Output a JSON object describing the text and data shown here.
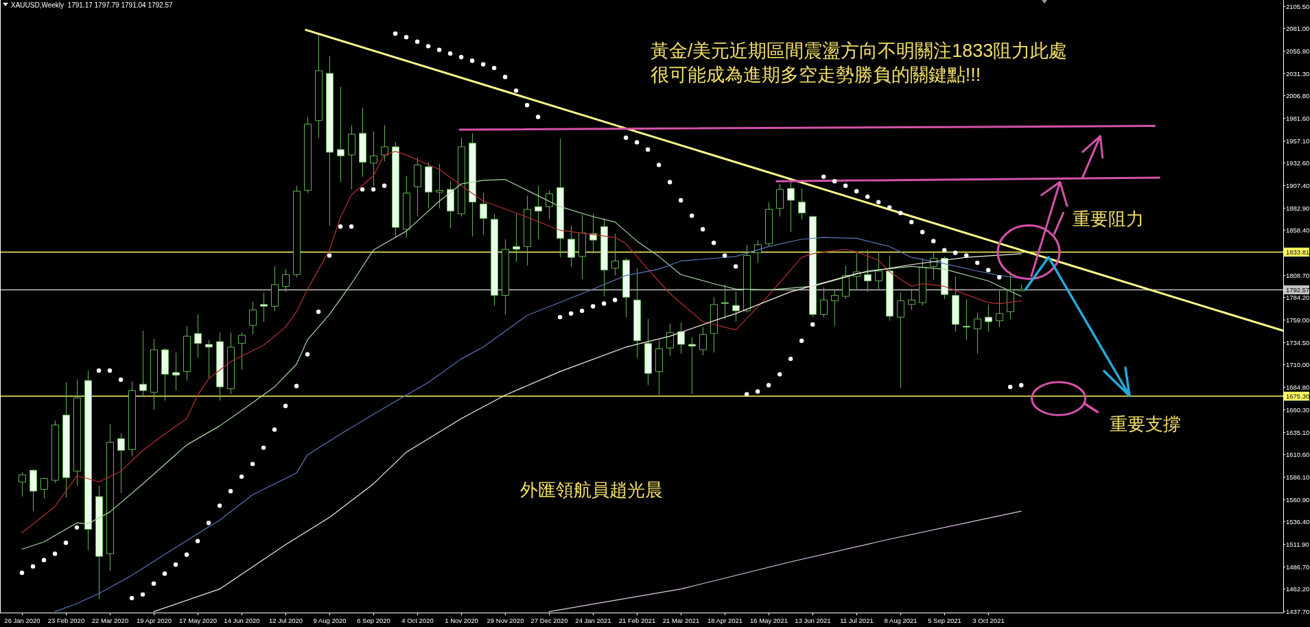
{
  "chart_data": {
    "type": "candlestick",
    "title": "XAUUSD,Weekly  1791.17 1797.79 1791.04 1792.57",
    "x": [
      "2020-01-26",
      "2020-02-02",
      "2020-02-09",
      "2020-02-16",
      "2020-02-23",
      "2020-03-01",
      "2020-03-08",
      "2020-03-15",
      "2020-03-22",
      "2020-03-29",
      "2020-04-05",
      "2020-04-12",
      "2020-04-19",
      "2020-04-26",
      "2020-05-03",
      "2020-05-10",
      "2020-05-17",
      "2020-05-24",
      "2020-05-31",
      "2020-06-07",
      "2020-06-14",
      "2020-06-21",
      "2020-06-28",
      "2020-07-05",
      "2020-07-12",
      "2020-07-19",
      "2020-07-26",
      "2020-08-02",
      "2020-08-09",
      "2020-08-16",
      "2020-08-23",
      "2020-08-30",
      "2020-09-06",
      "2020-09-13",
      "2020-09-20",
      "2020-09-27",
      "2020-10-04",
      "2020-10-11",
      "2020-10-18",
      "2020-10-25",
      "2020-11-01",
      "2020-11-08",
      "2020-11-15",
      "2020-11-22",
      "2020-11-29",
      "2020-12-06",
      "2020-12-13",
      "2020-12-20",
      "2020-12-27",
      "2021-01-03",
      "2021-01-10",
      "2021-01-17",
      "2021-01-24",
      "2021-01-31",
      "2021-02-07",
      "2021-02-14",
      "2021-02-21",
      "2021-02-28",
      "2021-03-07",
      "2021-03-14",
      "2021-03-21",
      "2021-03-28",
      "2021-04-04",
      "2021-04-11",
      "2021-04-18",
      "2021-04-25",
      "2021-05-02",
      "2021-05-09",
      "2021-05-16",
      "2021-05-23",
      "2021-05-30",
      "2021-06-06",
      "2021-06-13",
      "2021-06-20",
      "2021-06-27",
      "2021-07-04",
      "2021-07-11",
      "2021-07-18",
      "2021-07-25",
      "2021-08-01",
      "2021-08-08",
      "2021-08-15",
      "2021-08-22",
      "2021-08-29",
      "2021-09-05",
      "2021-09-12",
      "2021-09-19",
      "2021-09-26",
      "2021-10-03",
      "2021-10-10",
      "2021-10-17",
      "2021-10-24"
    ],
    "ohlc": [
      [
        1580,
        1591,
        1564,
        1588
      ],
      [
        1593,
        1594,
        1548,
        1570
      ],
      [
        1572,
        1585,
        1562,
        1584
      ],
      [
        1582,
        1648,
        1579,
        1643
      ],
      [
        1654,
        1690,
        1563,
        1585
      ],
      [
        1592,
        1693,
        1576,
        1673
      ],
      [
        1692,
        1703,
        1505,
        1528
      ],
      [
        1564,
        1576,
        1451,
        1498
      ],
      [
        1501,
        1644,
        1482,
        1624
      ],
      [
        1628,
        1634,
        1568,
        1615
      ],
      [
        1616,
        1691,
        1609,
        1681
      ],
      [
        1688,
        1747,
        1674,
        1681
      ],
      [
        1679,
        1738,
        1660,
        1726
      ],
      [
        1726,
        1728,
        1670,
        1699
      ],
      [
        1701,
        1723,
        1681,
        1698
      ],
      [
        1702,
        1752,
        1692,
        1741
      ],
      [
        1744,
        1765,
        1717,
        1733
      ],
      [
        1732,
        1737,
        1695,
        1729
      ],
      [
        1735,
        1745,
        1670,
        1685
      ],
      [
        1683,
        1745,
        1677,
        1729
      ],
      [
        1733,
        1745,
        1704,
        1742
      ],
      [
        1753,
        1779,
        1743,
        1770
      ],
      [
        1776,
        1789,
        1757,
        1774
      ],
      [
        1774,
        1818,
        1769,
        1798
      ],
      [
        1796,
        1815,
        1790,
        1809
      ],
      [
        1809,
        1907,
        1806,
        1901
      ],
      [
        1902,
        1983,
        1899,
        1975
      ],
      [
        1979,
        2076,
        1960,
        2034
      ],
      [
        2031,
        2050,
        1863,
        1944
      ],
      [
        1947,
        2016,
        1911,
        1940
      ],
      [
        1941,
        1974,
        1903,
        1964
      ],
      [
        1965,
        1993,
        1917,
        1933
      ],
      [
        1932,
        1967,
        1907,
        1940
      ],
      [
        1941,
        1974,
        1934,
        1950
      ],
      [
        1950,
        1955,
        1850,
        1861
      ],
      [
        1859,
        1918,
        1850,
        1899
      ],
      [
        1906,
        1938,
        1873,
        1930
      ],
      [
        1928,
        1933,
        1882,
        1900
      ],
      [
        1900,
        1931,
        1882,
        1902
      ],
      [
        1903,
        1912,
        1860,
        1879
      ],
      [
        1876,
        1960,
        1873,
        1950
      ],
      [
        1954,
        1965,
        1851,
        1889
      ],
      [
        1887,
        1899,
        1853,
        1871
      ],
      [
        1870,
        1876,
        1775,
        1786
      ],
      [
        1786,
        1848,
        1765,
        1837
      ],
      [
        1840,
        1876,
        1823,
        1837
      ],
      [
        1840,
        1896,
        1819,
        1881
      ],
      [
        1884,
        1907,
        1848,
        1879
      ],
      [
        1884,
        1902,
        1870,
        1898
      ],
      [
        1905,
        1959,
        1828,
        1849
      ],
      [
        1848,
        1863,
        1818,
        1828
      ],
      [
        1829,
        1875,
        1804,
        1855
      ],
      [
        1854,
        1876,
        1832,
        1847
      ],
      [
        1862,
        1871,
        1785,
        1814
      ],
      [
        1816,
        1854,
        1808,
        1824
      ],
      [
        1825,
        1827,
        1762,
        1784
      ],
      [
        1781,
        1816,
        1717,
        1736
      ],
      [
        1733,
        1760,
        1687,
        1700
      ],
      [
        1702,
        1737,
        1676,
        1727
      ],
      [
        1728,
        1755,
        1719,
        1745
      ],
      [
        1746,
        1756,
        1722,
        1732
      ],
      [
        1732,
        1740,
        1677,
        1730
      ],
      [
        1726,
        1751,
        1720,
        1743
      ],
      [
        1744,
        1784,
        1723,
        1776
      ],
      [
        1778,
        1798,
        1760,
        1777
      ],
      [
        1775,
        1790,
        1757,
        1769
      ],
      [
        1769,
        1842,
        1767,
        1830
      ],
      [
        1833,
        1847,
        1822,
        1842
      ],
      [
        1843,
        1889,
        1840,
        1881
      ],
      [
        1882,
        1909,
        1873,
        1903
      ],
      [
        1904,
        1911,
        1856,
        1891
      ],
      [
        1889,
        1904,
        1870,
        1877
      ],
      [
        1873,
        1874,
        1762,
        1765
      ],
      [
        1765,
        1795,
        1762,
        1781
      ],
      [
        1780,
        1792,
        1752,
        1786
      ],
      [
        1785,
        1819,
        1782,
        1808
      ],
      [
        1807,
        1833,
        1793,
        1812
      ],
      [
        1809,
        1836,
        1790,
        1802
      ],
      [
        1802,
        1833,
        1793,
        1813
      ],
      [
        1813,
        1830,
        1758,
        1763
      ],
      [
        1762,
        1789,
        1684,
        1780
      ],
      [
        1776,
        1793,
        1770,
        1781
      ],
      [
        1778,
        1827,
        1775,
        1817
      ],
      [
        1818,
        1834,
        1803,
        1827
      ],
      [
        1827,
        1829,
        1782,
        1787
      ],
      [
        1786,
        1807,
        1746,
        1754
      ],
      [
        1752,
        1782,
        1737,
        1751
      ],
      [
        1749,
        1767,
        1722,
        1760
      ],
      [
        1762,
        1776,
        1746,
        1757
      ],
      [
        1758,
        1791,
        1751,
        1766
      ],
      [
        1768,
        1812,
        1760,
        1792
      ],
      [
        1791.17,
        1797.79,
        1791.04,
        1792.57
      ]
    ],
    "color": "#62b552",
    "colors": [
      "#000000",
      "#eaffea",
      "#000000",
      "#000000",
      "#eaffea",
      "#000000",
      "#eaffea",
      "#eaffea",
      "#000000",
      "#eaffea",
      "#000000",
      "#eaffea",
      "#000000",
      "#eaffea",
      "#eaffea",
      "#000000",
      "#eaffea",
      "#eaffea",
      "#eaffea",
      "#000000",
      "#000000",
      "#000000",
      "#eaffea",
      "#000000",
      "#000000",
      "#000000",
      "#000000",
      "#000000",
      "#eaffea",
      "#eaffea",
      "#000000",
      "#eaffea",
      "#000000",
      "#000000",
      "#eaffea",
      "#000000",
      "#000000",
      "#eaffea",
      "#000000",
      "#eaffea",
      "#000000",
      "#eaffea",
      "#eaffea",
      "#eaffea",
      "#000000",
      "#eaffea",
      "#000000",
      "#eaffea",
      "#000000",
      "#eaffea",
      "#eaffea",
      "#000000",
      "#eaffea",
      "#eaffea",
      "#000000",
      "#eaffea",
      "#eaffea",
      "#eaffea",
      "#000000",
      "#000000",
      "#eaffea",
      "#eaffea",
      "#000000",
      "#000000",
      "#eaffea",
      "#eaffea",
      "#000000",
      "#000000",
      "#000000",
      "#000000",
      "#eaffea",
      "#eaffea",
      "#eaffea",
      "#000000",
      "#000000",
      "#000000",
      "#000000",
      "#eaffea",
      "#000000",
      "#eaffea",
      "#000000",
      "#000000",
      "#000000",
      "#000000",
      "#eaffea",
      "#eaffea",
      "#eaffea",
      "#000000",
      "#eaffea",
      "#000000",
      "#000000",
      "#000000"
    ],
    "series": [
      {
        "type": "line",
        "color": "#b83030",
        "x": [
          "2020-01-26",
          "2020-02-16",
          "2020-03-01",
          "2020-03-08",
          "2020-03-15",
          "2020-03-29",
          "2020-04-12",
          "2020-04-26",
          "2020-05-10",
          "2020-05-17",
          "2020-05-24",
          "2020-06-07",
          "2020-06-28",
          "2020-07-12",
          "2020-07-19",
          "2020-07-26",
          "2020-08-09",
          "2020-08-16",
          "2020-08-23",
          "2020-09-06",
          "2020-09-13",
          "2020-09-20",
          "2020-09-27",
          "2020-10-18",
          "2020-11-15",
          "2020-12-06",
          "2021-01-03",
          "2021-02-07",
          "2021-02-14",
          "2021-02-28",
          "2021-03-14",
          "2021-04-04",
          "2021-04-25",
          "2021-05-16",
          "2021-06-06",
          "2021-06-13",
          "2021-07-04",
          "2021-07-11",
          "2021-07-25",
          "2021-08-01",
          "2021-08-15",
          "2021-08-22",
          "2021-09-05",
          "2021-09-19",
          "2021-10-03",
          "2021-10-10",
          "2021-10-24"
        ],
        "values": [
          1524,
          1553,
          1587,
          1584,
          1580,
          1592,
          1615,
          1633,
          1650,
          1676,
          1694,
          1713,
          1731,
          1751,
          1768,
          1793,
          1836,
          1872,
          1897,
          1918,
          1941,
          1945,
          1941,
          1925,
          1890,
          1877,
          1858,
          1850,
          1843,
          1815,
          1788,
          1757,
          1748,
          1786,
          1828,
          1832,
          1837,
          1834,
          1825,
          1812,
          1796,
          1799,
          1796,
          1787,
          1778,
          1777,
          1780
        ]
      },
      {
        "type": "line",
        "color": "#a8d8a0",
        "x": [
          "2020-01-26",
          "2020-02-09",
          "2020-03-01",
          "2020-03-08",
          "2020-03-22",
          "2020-04-12",
          "2020-05-10",
          "2020-05-31",
          "2020-06-14",
          "2020-07-05",
          "2020-07-19",
          "2020-07-26",
          "2020-08-09",
          "2020-08-23",
          "2020-09-06",
          "2020-09-27",
          "2020-10-18",
          "2020-11-01",
          "2020-11-15",
          "2020-11-29",
          "2020-12-13",
          "2020-12-20",
          "2021-01-03",
          "2021-01-24",
          "2021-02-07",
          "2021-02-21",
          "2021-03-07",
          "2021-03-21",
          "2021-04-11",
          "2021-04-25",
          "2021-05-16",
          "2021-06-13",
          "2021-07-04",
          "2021-07-18",
          "2021-08-15",
          "2021-09-05",
          "2021-10-03",
          "2021-10-24"
        ],
        "values": [
          1506,
          1514,
          1535,
          1534,
          1547,
          1578,
          1621,
          1642,
          1659,
          1685,
          1710,
          1737,
          1765,
          1799,
          1836,
          1857,
          1890,
          1909,
          1913,
          1914,
          1902,
          1896,
          1884,
          1873,
          1867,
          1846,
          1829,
          1809,
          1799,
          1793,
          1792,
          1796,
          1806,
          1813,
          1818,
          1815,
          1802,
          1785
        ]
      },
      {
        "type": "line",
        "color": "#5a78b8",
        "x": [
          "2020-02-16",
          "2020-03-01",
          "2020-03-15",
          "2020-04-05",
          "2020-05-03",
          "2020-05-31",
          "2020-06-21",
          "2020-07-19",
          "2020-07-26",
          "2020-08-16",
          "2020-09-13",
          "2020-10-11",
          "2020-11-01",
          "2020-11-15",
          "2020-12-13",
          "2021-01-17",
          "2021-02-14",
          "2021-03-07",
          "2021-03-21",
          "2021-04-25",
          "2021-05-16",
          "2021-06-06",
          "2021-06-20",
          "2021-07-11",
          "2021-08-01",
          "2021-08-15",
          "2021-09-05",
          "2021-09-26",
          "2021-10-10",
          "2021-10-24"
        ],
        "values": [
          1437,
          1446,
          1457,
          1477,
          1508,
          1538,
          1566,
          1590,
          1610,
          1633,
          1662,
          1690,
          1716,
          1729,
          1764,
          1788,
          1808,
          1815,
          1824,
          1829,
          1840,
          1848,
          1850,
          1849,
          1840,
          1828,
          1821,
          1813,
          1808,
          1805
        ]
      },
      {
        "type": "line",
        "color": "#f2f2e4",
        "x": [
          "2020-04-19",
          "2020-05-31",
          "2020-07-12",
          "2020-08-09",
          "2020-09-06",
          "2020-09-27",
          "2020-11-01",
          "2020-11-29",
          "2021-01-03",
          "2021-02-14",
          "2021-03-14",
          "2021-04-11",
          "2021-04-25",
          "2021-05-30",
          "2021-07-11",
          "2021-08-15",
          "2021-09-19",
          "2021-10-24"
        ],
        "values": [
          1437,
          1462,
          1511,
          1541,
          1578,
          1613,
          1650,
          1676,
          1702,
          1729,
          1741,
          1758,
          1766,
          1790,
          1810,
          1820,
          1828,
          1832
        ]
      },
      {
        "type": "line",
        "color": "#e2cbe8",
        "x": [
          "2020-12-27",
          "2021-03-21",
          "2021-05-30",
          "2021-08-01",
          "2021-10-24"
        ],
        "values": [
          1437,
          1462,
          1492,
          1517,
          1548
        ]
      },
      {
        "type": "scatter",
        "marker": "circle",
        "color": "#ffffff",
        "x": [
          "2020-01-26",
          "2020-02-02",
          "2020-02-09",
          "2020-02-16",
          "2020-02-23",
          "2020-03-01",
          "2020-03-15",
          "2020-03-22",
          "2020-03-29",
          "2020-04-05",
          "2020-04-12",
          "2020-04-19",
          "2020-04-26",
          "2020-05-03",
          "2020-05-10",
          "2020-05-17",
          "2020-05-24",
          "2020-05-31",
          "2020-06-07",
          "2020-06-14",
          "2020-06-21",
          "2020-06-28",
          "2020-07-05",
          "2020-07-12",
          "2020-07-19",
          "2020-07-26",
          "2020-08-02",
          "2020-08-09",
          "2020-08-16",
          "2020-08-23",
          "2020-08-30",
          "2020-09-06",
          "2020-09-13",
          "2020-09-20",
          "2020-09-27",
          "2020-10-04",
          "2020-10-11",
          "2020-10-18",
          "2020-10-25",
          "2020-11-01",
          "2020-11-08",
          "2020-11-15",
          "2020-11-22",
          "2020-11-29",
          "2020-12-06",
          "2020-12-13",
          "2020-12-20",
          "2021-01-03",
          "2021-01-10",
          "2021-01-17",
          "2021-01-24",
          "2021-01-31",
          "2021-02-07",
          "2021-02-14",
          "2021-02-21",
          "2021-02-28",
          "2021-03-07",
          "2021-03-14",
          "2021-03-21",
          "2021-03-28",
          "2021-04-04",
          "2021-04-11",
          "2021-04-18",
          "2021-04-25",
          "2021-05-02",
          "2021-05-09",
          "2021-05-16",
          "2021-05-23",
          "2021-05-30",
          "2021-06-06",
          "2021-06-13",
          "2021-06-20",
          "2021-06-27",
          "2021-07-04",
          "2021-07-11",
          "2021-07-18",
          "2021-07-25",
          "2021-08-01",
          "2021-08-08",
          "2021-08-15",
          "2021-08-22",
          "2021-08-29",
          "2021-09-05",
          "2021-09-12",
          "2021-09-19",
          "2021-09-26",
          "2021-10-03",
          "2021-10-10",
          "2021-10-17",
          "2021-10-24"
        ],
        "values": [
          1480,
          1487,
          1494,
          1501,
          1513,
          1530,
          1703,
          1703,
          1693,
          1452,
          1456,
          1468,
          1479,
          1489,
          1500,
          1515,
          1535,
          1554,
          1570,
          1586,
          1600,
          1618,
          1638,
          1664,
          1686,
          1721,
          1768,
          1830,
          1862,
          1862,
          1903,
          1903,
          1907,
          2075,
          2071,
          2066,
          2061,
          2057,
          2053,
          2049,
          2045,
          2041,
          2037,
          2027,
          2012,
          1996,
          1983,
          1762,
          1766,
          1769,
          1774,
          1777,
          1781,
          1960,
          1955,
          1947,
          1930,
          1911,
          1891,
          1874,
          1859,
          1844,
          1830,
          1818,
          1677,
          1680,
          1687,
          1699,
          1716,
          1736,
          1754,
          1917,
          1912,
          1907,
          1901,
          1895,
          1889,
          1883,
          1877,
          1867,
          1856,
          1846,
          1836,
          1833,
          1830,
          1822,
          1814,
          1806,
          1685,
          1687
        ]
      },
      {
        "type": "line",
        "color": "#ffff8c",
        "x": [
          "2020-07-25",
          "2022-04-09"
        ],
        "values": [
          2079,
          1747
        ]
      },
      {
        "type": "line",
        "color": "#d552a8",
        "x": [
          "2020-10-31",
          "2022-01-17"
        ],
        "values": [
          1969,
          1973
        ]
      },
      {
        "type": "line",
        "color": "#d552a8",
        "x": [
          "2021-05-21",
          "2022-01-20"
        ],
        "values": [
          1912,
          1916
        ]
      }
    ],
    "xlim": [
      "2020-01-12",
      "2022-04-09"
    ],
    "ylim": [
      1436,
      2112
    ],
    "xticks": [
      {
        "value": "2020-01-26",
        "label": "26 Jan 2020"
      },
      {
        "value": "2020-02-23",
        "label": "23 Feb 2020"
      },
      {
        "value": "2020-03-22",
        "label": "22 Mar 2020"
      },
      {
        "value": "2020-04-19",
        "label": "19 Apr 2020"
      },
      {
        "value": "2020-05-17",
        "label": "17 May 2020"
      },
      {
        "value": "2020-06-14",
        "label": "14 Jun 2020"
      },
      {
        "value": "2020-07-12",
        "label": "12 Jul 2020"
      },
      {
        "value": "2020-08-09",
        "label": "9 Aug 2020"
      },
      {
        "value": "2020-09-06",
        "label": "6 Sep 2020"
      },
      {
        "value": "2020-10-04",
        "label": "4 Oct 2020"
      },
      {
        "value": "2020-11-01",
        "label": "1 Nov 2020"
      },
      {
        "value": "2020-11-29",
        "label": "29 Nov 2020"
      },
      {
        "value": "2020-12-27",
        "label": "27 Dec 2020"
      },
      {
        "value": "2021-01-24",
        "label": "24 Jan 2021"
      },
      {
        "value": "2021-02-21",
        "label": "21 Feb 2021"
      },
      {
        "value": "2021-03-21",
        "label": "21 Mar 2021"
      },
      {
        "value": "2021-04-18",
        "label": "18 Apr 2021"
      },
      {
        "value": "2021-05-16",
        "label": "16 May 2021"
      },
      {
        "value": "2021-06-13",
        "label": "13 Jun 2021"
      },
      {
        "value": "2021-07-11",
        "label": "11 Jul 2021"
      },
      {
        "value": "2021-08-08",
        "label": "8 Aug 2021"
      },
      {
        "value": "2021-09-05",
        "label": "5 Sep 2021"
      },
      {
        "value": "2021-10-03",
        "label": "3 Oct 2021"
      }
    ],
    "yticks": [
      {
        "value": 2105.5,
        "label": "2105.50"
      },
      {
        "value": 2081,
        "label": "2081.00"
      },
      {
        "value": 2055.8,
        "label": "2055.80"
      },
      {
        "value": 2031.3,
        "label": "2031.30"
      },
      {
        "value": 2006.8,
        "label": "2006.80"
      },
      {
        "value": 1981.6,
        "label": "1981.60"
      },
      {
        "value": 1957.1,
        "label": "1957.10"
      },
      {
        "value": 1932.6,
        "label": "1932.60"
      },
      {
        "value": 1907.4,
        "label": "1907.40"
      },
      {
        "value": 1882.9,
        "label": "1882.90"
      },
      {
        "value": 1858.4,
        "label": "1858.40"
      },
      {
        "value": 1808.7,
        "label": "1808.70"
      },
      {
        "value": 1784.2,
        "label": "1784.20"
      },
      {
        "value": 1759,
        "label": "1759.00"
      },
      {
        "value": 1734.5,
        "label": "1734.50"
      },
      {
        "value": 1710,
        "label": "1710.00"
      },
      {
        "value": 1684.8,
        "label": "1684.80"
      },
      {
        "value": 1660.3,
        "label": "1660.30"
      },
      {
        "value": 1635.1,
        "label": "1635.10"
      },
      {
        "value": 1610.6,
        "label": "1610.60"
      },
      {
        "value": 1586.1,
        "label": "1586.10"
      },
      {
        "value": 1560.9,
        "label": "1560.90"
      },
      {
        "value": 1536.4,
        "label": "1536.40"
      },
      {
        "value": 1511.9,
        "label": "1511.90"
      },
      {
        "value": 1486.7,
        "label": "1486.70"
      },
      {
        "value": 1462.2,
        "label": "1462.20"
      },
      {
        "value": 1437.7,
        "label": "1437.70"
      }
    ],
    "ref_lines": [
      {
        "axis": "y",
        "value": 1833.81,
        "label": "1833.81",
        "color": "#ffff60"
      },
      {
        "axis": "y",
        "value": 1675.3,
        "label": "1675.30",
        "color": "#ffff60"
      },
      {
        "axis": "y",
        "value": 1792.57,
        "label": "1792.57",
        "color": "#c4c4c4"
      }
    ],
    "annotations": [
      "黃金/美元近期區間震盪方向不明關注1833阻力此處很可能成為進期多空走勢勝負的關鍵點!!!",
      "重要阻力",
      {
        "text": "重要支撐",
        "x": "2022-01-01",
        "y": 1675.3
      },
      "外匯領航員趙光晨"
    ]
  }
}
